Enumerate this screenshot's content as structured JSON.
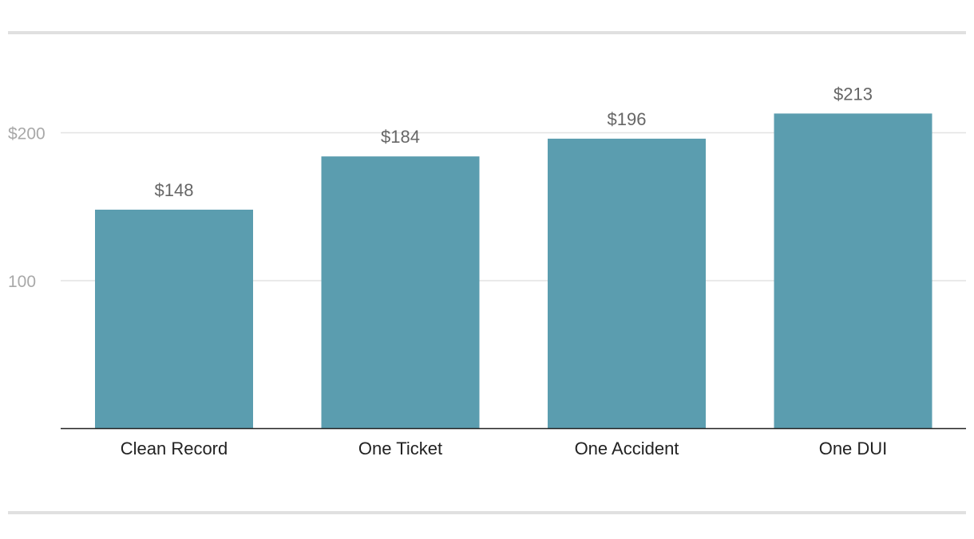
{
  "chart_data": {
    "type": "bar",
    "title": "",
    "xlabel": "",
    "ylabel": "",
    "categories": [
      "Clean Record",
      "One Ticket",
      "One Accident",
      "One DUI"
    ],
    "values": [
      148,
      184,
      196,
      213
    ],
    "value_labels": [
      "$148",
      "$184",
      "$196",
      "$213"
    ],
    "ylim": [
      0,
      200
    ],
    "yticks": [
      {
        "value": 100,
        "label": "100"
      },
      {
        "value": 200,
        "label": "$200"
      }
    ],
    "grid": true,
    "legend": "none",
    "bar_color": "#5b9daf",
    "grid_color": "#e3e3e3",
    "axis_color": "#222222"
  }
}
